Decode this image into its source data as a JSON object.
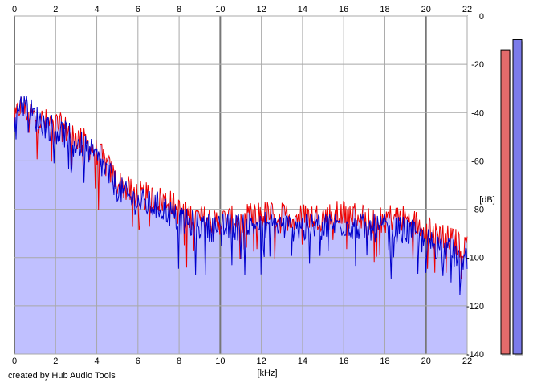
{
  "footer": {
    "credit": "created by Hub Audio Tools"
  },
  "chart_data": {
    "type": "area",
    "title": "",
    "xlabel": "[kHz]",
    "ylabel": "[dB]",
    "xlim": [
      0,
      22
    ],
    "ylim": [
      -140,
      0
    ],
    "x_ticks": [
      "0",
      "2",
      "4",
      "6",
      "8",
      "10",
      "12",
      "14",
      "16",
      "18",
      "20",
      "22"
    ],
    "y_ticks": [
      "0",
      "-20",
      "-40",
      "-60",
      "-80",
      "-100",
      "-120",
      "-140"
    ],
    "grid": true,
    "series": [
      {
        "color": "#ee0000",
        "x": [
          0,
          0.25,
          0.5,
          0.75,
          1,
          1.5,
          2,
          2.5,
          3,
          3.5,
          4,
          4.5,
          5,
          5.5,
          6,
          6.5,
          7,
          7.5,
          8,
          9,
          10,
          11,
          12,
          13,
          14,
          15,
          16,
          17,
          18,
          19,
          19.5,
          20,
          20.5,
          21,
          21.5,
          22
        ],
        "values": [
          -45,
          -37,
          -39,
          -40,
          -42,
          -44,
          -45,
          -47,
          -50,
          -53,
          -56,
          -62,
          -69,
          -72,
          -74,
          -75,
          -76,
          -77,
          -81,
          -84,
          -85,
          -84,
          -82,
          -83,
          -83,
          -83,
          -82,
          -83,
          -83,
          -84,
          -86,
          -87,
          -89,
          -92,
          -94,
          -95
        ]
      },
      {
        "color": "#0000cc",
        "x": [
          0,
          0.25,
          0.5,
          0.75,
          1,
          1.5,
          2,
          2.5,
          3,
          3.5,
          4,
          4.5,
          5,
          5.5,
          6,
          6.5,
          7,
          7.5,
          8,
          9,
          10,
          11,
          12,
          13,
          14,
          15,
          16,
          17,
          18,
          19,
          19.5,
          20,
          20.5,
          21,
          21.5,
          22
        ],
        "values": [
          -42,
          -35,
          -37,
          -39,
          -42,
          -45,
          -47,
          -49,
          -52,
          -55,
          -59,
          -65,
          -71,
          -75,
          -77,
          -78,
          -79,
          -81,
          -85,
          -87,
          -88,
          -87,
          -86,
          -87,
          -88,
          -87,
          -86,
          -88,
          -88,
          -89,
          -91,
          -93,
          -95,
          -97,
          -99,
          -100
        ]
      }
    ],
    "level_meters": [
      {
        "color": "#e36b6b",
        "level": 0.9
      },
      {
        "color": "#7b7bea",
        "level": 0.93
      }
    ]
  }
}
